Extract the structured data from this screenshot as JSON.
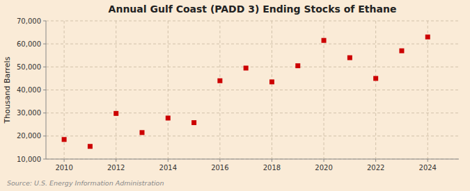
{
  "chart_data": {
    "type": "scatter",
    "title": "Annual Gulf Coast (PADD 3) Ending Stocks of Ethane",
    "y_label": "Thousand Barrels",
    "source": "Source: U.S. Energy Information Administration",
    "x": [
      2010,
      2011,
      2012,
      2013,
      2014,
      2015,
      2016,
      2017,
      2018,
      2019,
      2020,
      2021,
      2022,
      2023,
      2024
    ],
    "values": [
      18500,
      15500,
      29800,
      21500,
      27800,
      25800,
      44000,
      49500,
      43500,
      50500,
      61500,
      54000,
      45000,
      57000,
      63000
    ],
    "color": "#cc0000",
    "marker": "square",
    "xlim": [
      2009.3,
      2025.2
    ],
    "ylim": [
      10000,
      70000
    ],
    "xticks": [
      2010,
      2012,
      2014,
      2016,
      2018,
      2020,
      2022,
      2024
    ],
    "yticks": [
      {
        "value": 10000,
        "label": "10,000"
      },
      {
        "value": 20000,
        "label": "20,000"
      },
      {
        "value": 30000,
        "label": "30,000"
      },
      {
        "value": 40000,
        "label": "40,000"
      },
      {
        "value": 50000,
        "label": "50,000"
      },
      {
        "value": 60000,
        "label": "60,000"
      },
      {
        "value": 70000,
        "label": "70,000"
      }
    ],
    "grid": true
  }
}
